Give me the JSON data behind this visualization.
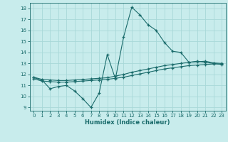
{
  "xlabel": "Humidex (Indice chaleur)",
  "bg_color": "#c8ecec",
  "grid_color": "#a8d8d8",
  "line_color": "#1a6b6b",
  "xlim": [
    -0.5,
    23.5
  ],
  "ylim": [
    8.7,
    18.5
  ],
  "xticks": [
    0,
    1,
    2,
    3,
    4,
    5,
    6,
    7,
    8,
    9,
    10,
    11,
    12,
    13,
    14,
    15,
    16,
    17,
    18,
    19,
    20,
    21,
    22,
    23
  ],
  "yticks": [
    9,
    10,
    11,
    12,
    13,
    14,
    15,
    16,
    17,
    18
  ],
  "line1_x": [
    0,
    1,
    2,
    3,
    4,
    5,
    6,
    7,
    8,
    9,
    10,
    11,
    12,
    13,
    14,
    15,
    16,
    17,
    18,
    19,
    20,
    21,
    22,
    23
  ],
  "line1_y": [
    11.7,
    11.5,
    10.7,
    10.9,
    11.0,
    10.5,
    9.8,
    9.0,
    10.3,
    13.8,
    11.6,
    15.4,
    18.1,
    17.4,
    16.5,
    16.0,
    14.9,
    14.1,
    14.0,
    13.1,
    13.2,
    13.1,
    13.0,
    12.9
  ],
  "line2_x": [
    0,
    1,
    2,
    3,
    4,
    5,
    6,
    7,
    8,
    9,
    10,
    11,
    12,
    13,
    14,
    15,
    16,
    17,
    18,
    19,
    20,
    21,
    22,
    23
  ],
  "line2_y": [
    11.6,
    11.4,
    11.35,
    11.3,
    11.3,
    11.35,
    11.4,
    11.45,
    11.5,
    11.55,
    11.65,
    11.75,
    11.9,
    12.05,
    12.2,
    12.35,
    12.5,
    12.6,
    12.7,
    12.8,
    12.85,
    12.9,
    12.95,
    12.95
  ],
  "line3_x": [
    0,
    1,
    2,
    3,
    4,
    5,
    6,
    7,
    8,
    9,
    10,
    11,
    12,
    13,
    14,
    15,
    16,
    17,
    18,
    19,
    20,
    21,
    22,
    23
  ],
  "line3_y": [
    11.75,
    11.55,
    11.5,
    11.45,
    11.45,
    11.5,
    11.55,
    11.6,
    11.65,
    11.7,
    11.85,
    12.0,
    12.2,
    12.35,
    12.5,
    12.65,
    12.8,
    12.9,
    13.0,
    13.1,
    13.15,
    13.2,
    13.05,
    13.0
  ]
}
